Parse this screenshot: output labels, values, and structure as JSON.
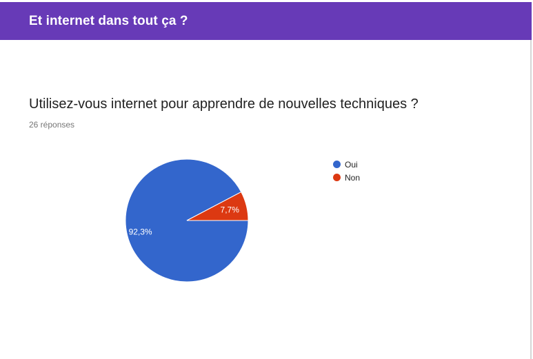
{
  "section": {
    "title": "Et internet dans tout ça ?",
    "accent_color": "#673ab7"
  },
  "question": {
    "title": "Utilisez-vous internet pour apprendre de nouvelles techniques ?",
    "response_count": "26 réponses"
  },
  "chart_data": {
    "type": "pie",
    "categories": [
      "Oui",
      "Non"
    ],
    "values": [
      92.3,
      7.7
    ],
    "labels": [
      "92,3%",
      "7,7%"
    ],
    "colors": [
      "#3366cc",
      "#dc3912"
    ],
    "legend_position": "right"
  }
}
